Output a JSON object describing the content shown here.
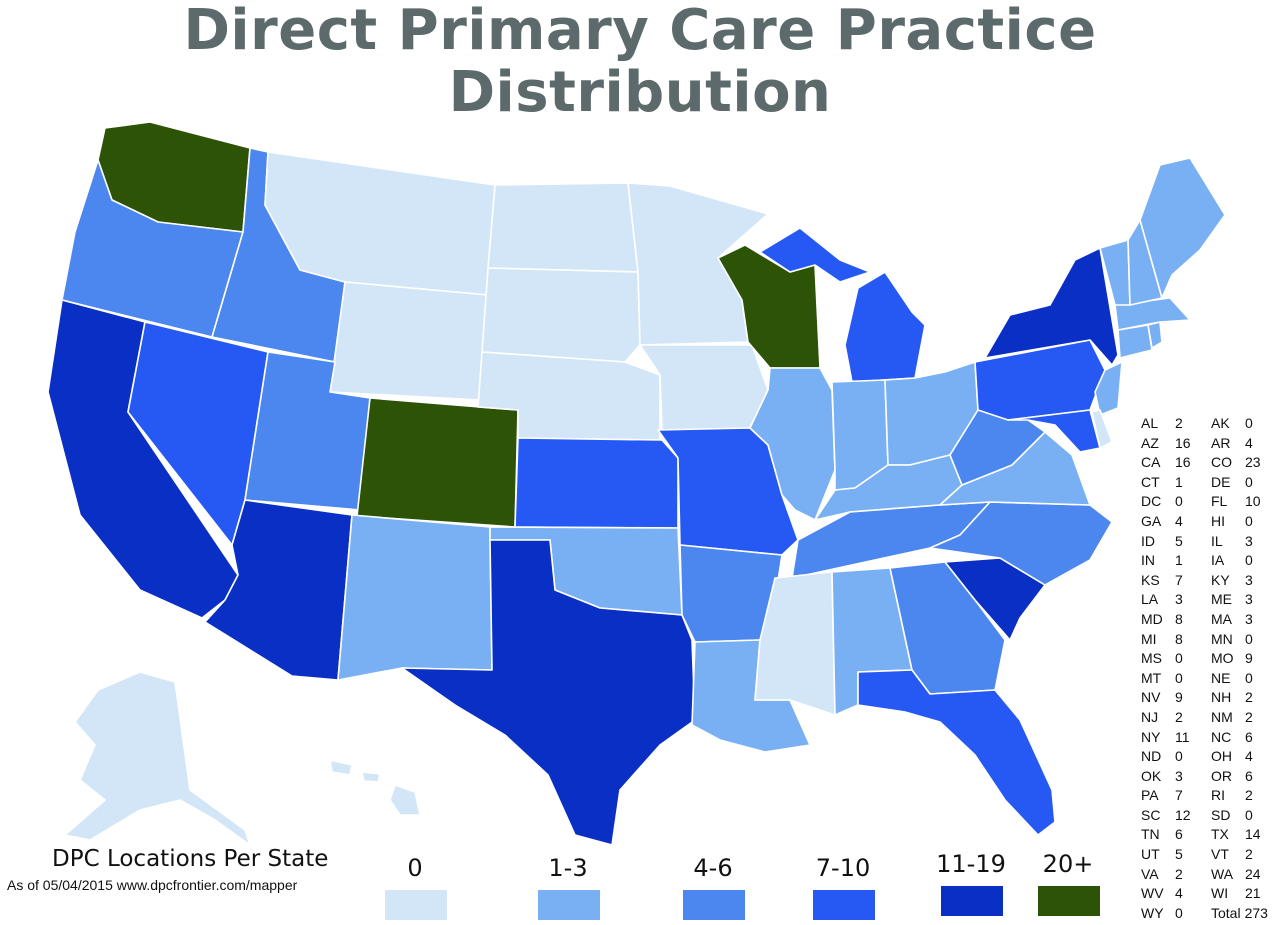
{
  "title": "Direct Primary Care Practice Distribution",
  "legend": {
    "heading": "DPC Locations Per State",
    "source": "As of 05/04/2015 www.dpcfrontier.com/mapper",
    "buckets": [
      {
        "label": "0",
        "color": "#d3e6f8"
      },
      {
        "label": "1-3",
        "color": "#79b0f3"
      },
      {
        "label": "4-6",
        "color": "#4b87ef"
      },
      {
        "label": "7-10",
        "color": "#2659f3"
      },
      {
        "label": "11-19",
        "color": "#0a2fc4"
      },
      {
        "label": "20+",
        "color": "#2d5306"
      }
    ]
  },
  "state_counts": [
    [
      "AL",
      "2",
      "AK",
      "0"
    ],
    [
      "AZ",
      "16",
      "AR",
      "4"
    ],
    [
      "CA",
      "16",
      "CO",
      "23"
    ],
    [
      "CT",
      "1",
      "DE",
      "0"
    ],
    [
      "DC",
      "0",
      "FL",
      "10"
    ],
    [
      "GA",
      "4",
      "HI",
      "0"
    ],
    [
      "ID",
      "5",
      "IL",
      "3"
    ],
    [
      "IN",
      "1",
      "IA",
      "0"
    ],
    [
      "KS",
      "7",
      "KY",
      "3"
    ],
    [
      "LA",
      "3",
      "ME",
      "3"
    ],
    [
      "MD",
      "8",
      "MA",
      "3"
    ],
    [
      "MI",
      "8",
      "MN",
      "0"
    ],
    [
      "MS",
      "0",
      "MO",
      "9"
    ],
    [
      "MT",
      "0",
      "NE",
      "0"
    ],
    [
      "NV",
      "9",
      "NH",
      "2"
    ],
    [
      "NJ",
      "2",
      "NM",
      "2"
    ],
    [
      "NY",
      "11",
      "NC",
      "6"
    ],
    [
      "ND",
      "0",
      "OH",
      "4"
    ],
    [
      "OK",
      "3",
      "OR",
      "6"
    ],
    [
      "PA",
      "7",
      "RI",
      "2"
    ],
    [
      "SC",
      "12",
      "SD",
      "0"
    ],
    [
      "TN",
      "6",
      "TX",
      "14"
    ],
    [
      "UT",
      "5",
      "VT",
      "2"
    ],
    [
      "VA",
      "2",
      "WA",
      "24"
    ],
    [
      "WV",
      "4",
      "WI",
      "21"
    ]
  ],
  "last_row": {
    "abbr": "WY",
    "value": "0",
    "total_label": "Total",
    "total_value": "273"
  }
}
